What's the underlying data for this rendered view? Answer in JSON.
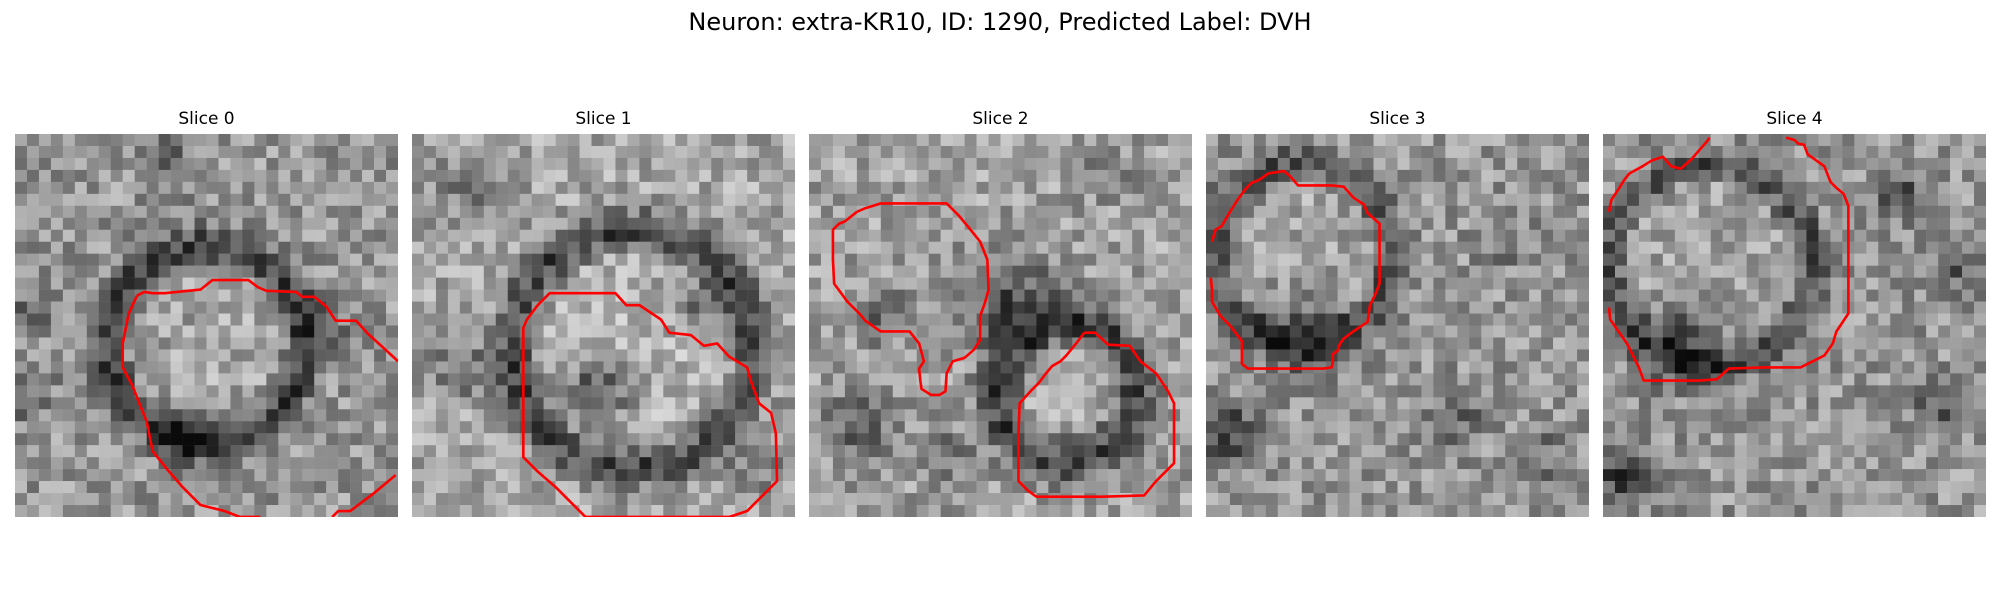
{
  "figure": {
    "title": "Neuron: extra-KR10, ID: 1290, Predicted Label: DVH"
  },
  "panels": [
    {
      "title": "Slice 0"
    },
    {
      "title": "Slice 1"
    },
    {
      "title": "Slice 2"
    },
    {
      "title": "Slice 3"
    },
    {
      "title": "Slice 4"
    }
  ],
  "colors": {
    "contour": "#ff0000",
    "background": "#ffffff",
    "colormap": "grayscale"
  }
}
